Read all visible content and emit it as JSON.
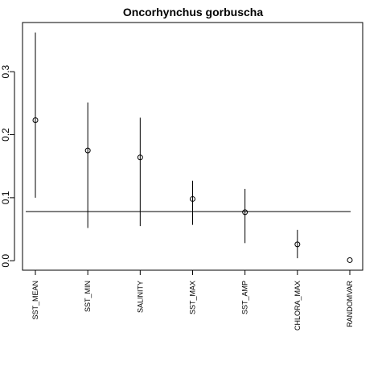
{
  "chart_data": {
    "type": "scatter",
    "title": "Oncorhynchus gorbuscha",
    "xlabel": "",
    "ylabel": "",
    "categories": [
      "SST_MEAN",
      "SST_MIN",
      "SALINITY",
      "SST_MAX",
      "SST_AMP",
      "CHLORA_MAX",
      "RANDOMVAR"
    ],
    "values": [
      0.223,
      0.175,
      0.164,
      0.098,
      0.077,
      0.026,
      0.001
    ],
    "lower": [
      0.1,
      0.052,
      0.055,
      0.057,
      0.028,
      0.004,
      null
    ],
    "upper": [
      0.362,
      0.251,
      0.227,
      0.127,
      0.114,
      0.049,
      null
    ],
    "reference_line": 0.078,
    "ylim": [
      -0.015,
      0.378
    ],
    "yticks": [
      "0.0",
      "0.1",
      "0.2",
      "0.3"
    ],
    "ytick_values": [
      0.0,
      0.1,
      0.2,
      0.3
    ],
    "grid": false,
    "legend": "none"
  }
}
